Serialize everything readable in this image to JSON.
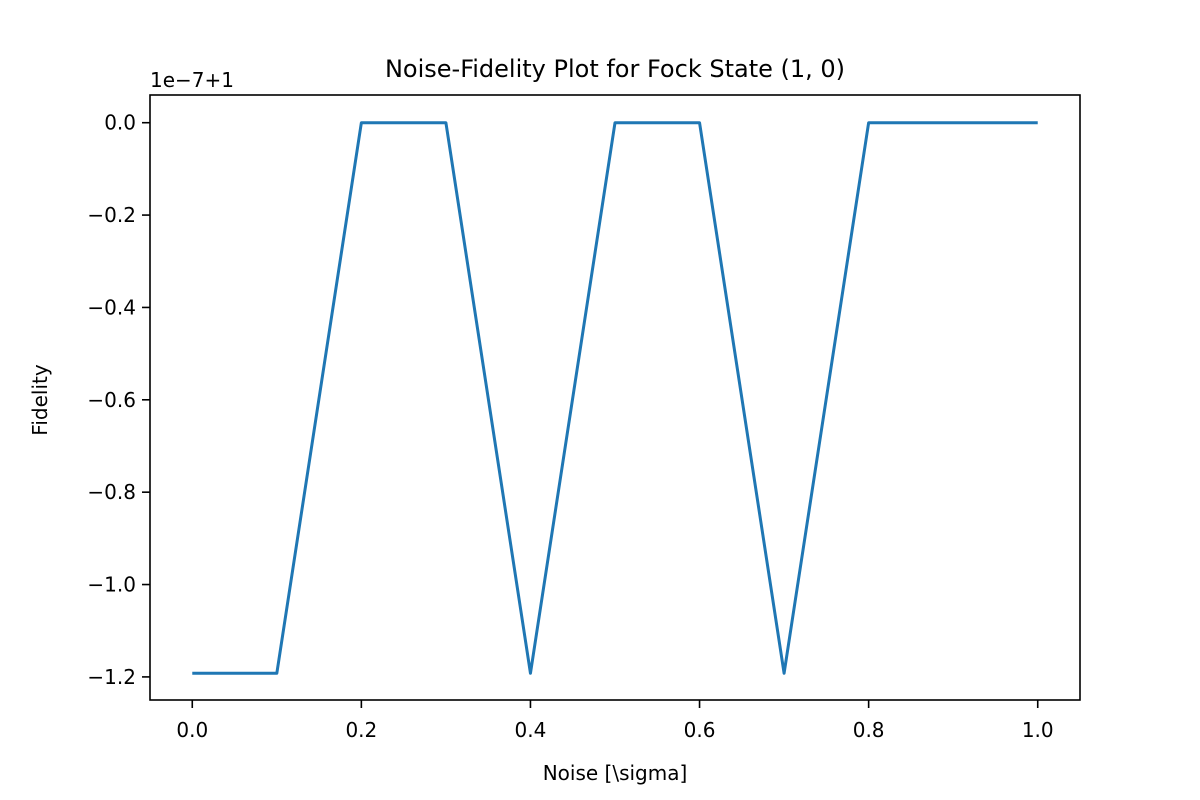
{
  "chart_data": {
    "type": "line",
    "title": "Noise-Fidelity Plot for Fock State (1, 0)",
    "xlabel": "Noise [\\sigma]",
    "ylabel": "Fidelity",
    "axis_offset_label": "1e−7+1",
    "xlim": [
      -0.05,
      1.05
    ],
    "ylim": [
      -1.25,
      0.06
    ],
    "x_ticks": [
      0.0,
      0.2,
      0.4,
      0.6,
      0.8,
      1.0
    ],
    "x_tick_labels": [
      "0.0",
      "0.2",
      "0.4",
      "0.6",
      "0.8",
      "1.0"
    ],
    "y_ticks": [
      0.0,
      -0.2,
      -0.4,
      -0.6,
      -0.8,
      -1.0,
      -1.2
    ],
    "y_tick_labels": [
      "0.0",
      "−0.2",
      "−0.4",
      "−0.6",
      "−0.8",
      "−1.0",
      "−1.2"
    ],
    "grid": false,
    "series": [
      {
        "color": "#1f77b4",
        "x": [
          0.0,
          0.1,
          0.2,
          0.3,
          0.4,
          0.5,
          0.6,
          0.7,
          0.8,
          0.9,
          1.0
        ],
        "y": [
          -1.192,
          -1.192,
          0.0,
          0.0,
          -1.192,
          0.0,
          0.0,
          -1.192,
          0.0,
          0.0,
          0.0
        ]
      }
    ]
  }
}
